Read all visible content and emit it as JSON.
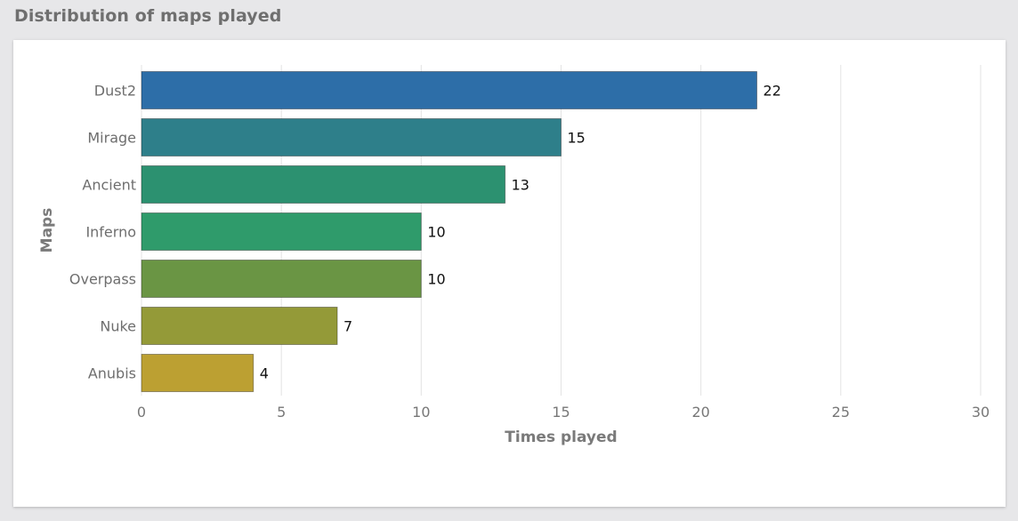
{
  "page_title": "Distribution of maps played",
  "chart_data": {
    "type": "bar",
    "orientation": "horizontal",
    "categories": [
      "Dust2",
      "Mirage",
      "Ancient",
      "Inferno",
      "Overpass",
      "Nuke",
      "Anubis"
    ],
    "values": [
      22,
      15,
      13,
      10,
      10,
      7,
      4
    ],
    "colors": [
      "#2d6ea8",
      "#2e7f8a",
      "#2c9170",
      "#2f9b6b",
      "#6a9544",
      "#949a38",
      "#bca032"
    ],
    "xlabel": "Times played",
    "ylabel": "Maps",
    "xlim": [
      0,
      30
    ],
    "xticks": [
      0,
      5,
      10,
      15,
      20,
      25,
      30
    ],
    "grid": true
  }
}
